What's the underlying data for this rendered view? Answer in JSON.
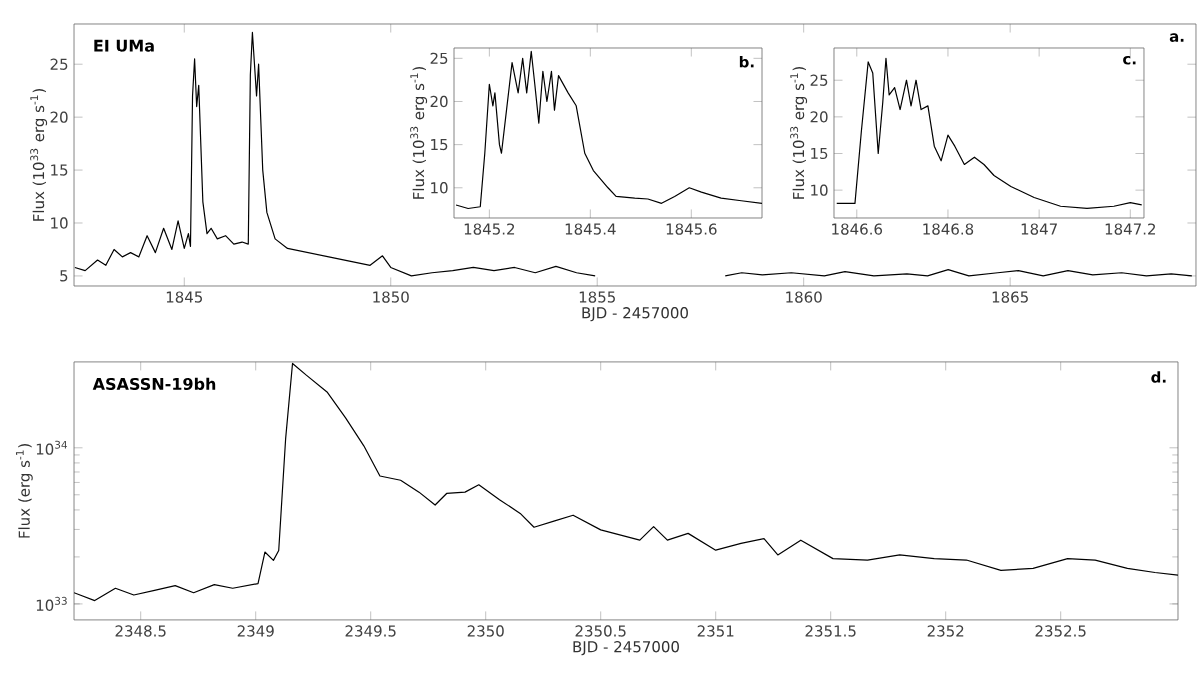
{
  "chart_data": [
    {
      "type": "line",
      "title": "EI UMa",
      "xlabel": "BJD - 2457000",
      "ylabel": "Flux (10$^{33}$ erg s$^{-1}$)",
      "annotations": [
        "a."
      ],
      "color": "#000000",
      "xlim": [
        1842.33,
        1869.5
      ],
      "ylim": [
        4.05,
        28.8
      ],
      "xticks": [
        1845,
        1850,
        1855,
        1860,
        1865
      ],
      "yticks": [
        5,
        10,
        15,
        20,
        25
      ],
      "x": [
        1842.35,
        1842.6,
        1842.9,
        1843.1,
        1843.3,
        1843.5,
        1843.7,
        1843.9,
        1844.1,
        1844.3,
        1844.5,
        1844.7,
        1844.85,
        1845.0,
        1845.1,
        1845.15,
        1845.2,
        1845.25,
        1845.3,
        1845.35,
        1845.45,
        1845.55,
        1845.65,
        1845.8,
        1846.0,
        1846.2,
        1846.4,
        1846.55,
        1846.6,
        1846.65,
        1846.75,
        1846.8,
        1846.9,
        1847.0,
        1847.2,
        1847.5,
        1848,
        1848.5,
        1849,
        1849.5,
        1849.8,
        1850,
        1850.5,
        1851,
        1851.5,
        1852,
        1852.5,
        1853,
        1853.5,
        1854,
        1854.5,
        1854.95,
        1856.5,
        1858.1,
        1858.5,
        1859,
        1859.7,
        1860.5,
        1861,
        1861.7,
        1862.5,
        1863,
        1863.5,
        1864,
        1864.7,
        1865.2,
        1865.8,
        1866.4,
        1867,
        1867.7,
        1868.3,
        1868.9,
        1869.4
      ],
      "values": [
        5.8,
        5.5,
        6.5,
        6.0,
        7.5,
        6.8,
        7.2,
        6.8,
        8.8,
        7.2,
        9.5,
        7.5,
        10.2,
        7.6,
        9.0,
        7.8,
        22,
        25.5,
        21,
        23,
        12,
        9,
        9.5,
        8.5,
        8.8,
        8.0,
        8.2,
        8.0,
        24,
        28,
        22,
        25,
        15,
        11,
        8.5,
        7.6,
        7.2,
        6.8,
        6.4,
        6.0,
        6.9,
        5.8,
        5.0,
        5.3,
        5.5,
        5.8,
        5.5,
        5.8,
        5.3,
        5.9,
        5.3,
        5.0,
        null,
        5.0,
        5.3,
        5.1,
        5.3,
        5.0,
        5.4,
        5.0,
        5.2,
        5.0,
        5.6,
        5.0,
        5.3,
        5.5,
        5.0,
        5.5,
        5.1,
        5.3,
        5.0,
        5.2,
        5.0
      ]
    },
    {
      "type": "line",
      "ylabel": "Flux (10$^{33}$ erg s$^{-1}$)",
      "annotations": [
        "b."
      ],
      "color": "#000000",
      "xlim": [
        1845.13,
        1845.74
      ],
      "ylim": [
        6.5,
        26.2
      ],
      "xticks": [
        1845.2,
        1845.4,
        1845.6
      ],
      "yticks": [
        10,
        15,
        20,
        25
      ],
      "x": [
        1845.134,
        1845.158,
        1845.182,
        1845.191,
        1845.2,
        1845.207,
        1845.211,
        1845.22,
        1845.224,
        1845.234,
        1845.245,
        1845.257,
        1845.266,
        1845.274,
        1845.283,
        1845.29,
        1845.298,
        1845.306,
        1845.314,
        1845.323,
        1845.329,
        1845.337,
        1845.356,
        1845.372,
        1845.389,
        1845.406,
        1845.435,
        1845.451,
        1845.488,
        1845.514,
        1845.541,
        1845.567,
        1845.596,
        1845.62,
        1845.659,
        1845.699,
        1845.74
      ],
      "values": [
        8.0,
        7.6,
        7.8,
        14,
        22,
        19.5,
        21,
        15,
        14,
        19,
        24.5,
        21,
        25,
        21,
        25.8,
        22,
        17.5,
        23.5,
        20,
        23.5,
        19,
        23,
        21,
        19.5,
        14,
        12,
        10,
        9,
        8.8,
        8.7,
        8.2,
        9,
        10,
        9.5,
        8.8,
        8.5,
        8.2
      ]
    },
    {
      "type": "line",
      "ylabel": "Flux (10$^{33}$ erg s$^{-1}$)",
      "annotations": [
        "c."
      ],
      "color": "#000000",
      "xlim": [
        1846.55,
        1847.23
      ],
      "ylim": [
        6.2,
        29.4
      ],
      "xticks": [
        1846.6,
        1846.8,
        1847,
        1847.2
      ],
      "yticks": [
        10,
        15,
        20,
        25
      ],
      "x": [
        1846.556,
        1846.596,
        1846.61,
        1846.625,
        1846.635,
        1846.647,
        1846.657,
        1846.664,
        1846.671,
        1846.683,
        1846.695,
        1846.709,
        1846.719,
        1846.73,
        1846.741,
        1846.756,
        1846.77,
        1846.785,
        1846.8,
        1846.815,
        1846.836,
        1846.858,
        1846.879,
        1846.901,
        1846.938,
        1846.989,
        1847.047,
        1847.105,
        1847.164,
        1847.2,
        1847.225
      ],
      "values": [
        8.2,
        8.2,
        18,
        27.5,
        26,
        15,
        22,
        28,
        23,
        24,
        21,
        25,
        21.5,
        25,
        21,
        21.5,
        16,
        14,
        17.5,
        16,
        13.5,
        14.5,
        13.5,
        12,
        10.5,
        9,
        7.8,
        7.5,
        7.8,
        8.3,
        8.0
      ]
    },
    {
      "type": "line",
      "title": "ASASSN-19bh",
      "xlabel": "BJD - 2457000",
      "ylabel": "Flux (erg s$^{-1}$)",
      "annotations": [
        "d."
      ],
      "color": "#000000",
      "log": true,
      "xlim": [
        2348.21,
        2353.01
      ],
      "ylim": [
        7.9e+32,
        3.55e+34
      ],
      "xticks": [
        2348.5,
        2349,
        2349.5,
        2350,
        2350.5,
        2351,
        2351.5,
        2352,
        2352.5
      ],
      "yticks": [
        {
          "value": 1e+33,
          "label": "10$^{33}$"
        },
        {
          "value": 1e+34,
          "label": "10$^{34}$"
        }
      ],
      "x": [
        2348.21,
        2348.3,
        2348.39,
        2348.47,
        2348.56,
        2348.65,
        2348.73,
        2348.82,
        2348.9,
        2349.01,
        2349.04,
        2349.077,
        2349.1,
        2349.13,
        2349.16,
        2349.22,
        2349.31,
        2349.39,
        2349.47,
        2349.54,
        2349.63,
        2349.71,
        2349.78,
        2349.83,
        2349.91,
        2349.97,
        2350.06,
        2350.15,
        2350.21,
        2350.3,
        2350.38,
        2350.5,
        2350.67,
        2350.73,
        2350.79,
        2350.88,
        2351.0,
        2351.11,
        2351.21,
        2351.27,
        2351.37,
        2351.51,
        2351.66,
        2351.8,
        2351.95,
        2352.09,
        2352.24,
        2352.38,
        2352.53,
        2352.65,
        2352.79,
        2352.91,
        2353.01
      ],
      "values": [
        1.18e+33,
        1.05e+33,
        1.26e+33,
        1.14e+33,
        1.22e+33,
        1.31e+33,
        1.18e+33,
        1.33e+33,
        1.26e+33,
        1.35e+33,
        2.15e+33,
        1.9e+33,
        2.2e+33,
        1.14e+34,
        3.47e+34,
        2.92e+34,
        2.28e+34,
        1.56e+34,
        1.03e+34,
        6.6e+33,
        6.2e+33,
        5.2e+33,
        4.3e+33,
        5.1e+33,
        5.2e+33,
        5.8e+33,
        4.65e+33,
        3.8e+33,
        3.1e+33,
        3.4e+33,
        3.7e+33,
        2.98e+33,
        2.56e+33,
        3.13e+33,
        2.56e+33,
        2.83e+33,
        2.21e+33,
        2.44e+33,
        2.62e+33,
        2.06e+33,
        2.56e+33,
        1.95e+33,
        1.91e+33,
        2.06e+33,
        1.95e+33,
        1.91e+33,
        1.64e+33,
        1.69e+33,
        1.95e+33,
        1.91e+33,
        1.69e+33,
        1.59e+33,
        1.53e+33
      ]
    }
  ]
}
